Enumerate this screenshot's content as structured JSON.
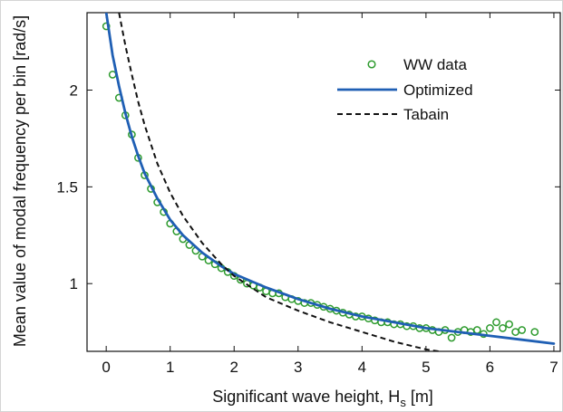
{
  "chart_data": {
    "type": "line",
    "xlabel": "Significant wave height, H",
    "xlabel_subscript": "s",
    "xlabel_unit": " [m]",
    "ylabel": "Mean value of modal frequency per bin [rad/s]",
    "xlim": [
      -0.3,
      7.1
    ],
    "ylim": [
      0.65,
      2.4
    ],
    "x_ticks": [
      0,
      1,
      2,
      3,
      4,
      5,
      6,
      7
    ],
    "y_ticks": [
      1,
      1.5,
      2
    ],
    "y_tick_labels": [
      "1",
      "1.5",
      "2"
    ],
    "grid": false,
    "legend_position": "top-right",
    "series": [
      {
        "name": "WW data",
        "kind": "scatter",
        "marker": "circle",
        "color": "#2e9b2e",
        "x": [
          0.0,
          0.1,
          0.2,
          0.3,
          0.4,
          0.5,
          0.6,
          0.7,
          0.8,
          0.9,
          1.0,
          1.1,
          1.2,
          1.3,
          1.4,
          1.5,
          1.6,
          1.7,
          1.8,
          1.9,
          2.0,
          2.1,
          2.2,
          2.3,
          2.4,
          2.5,
          2.6,
          2.7,
          2.8,
          2.9,
          3.0,
          3.1,
          3.2,
          3.3,
          3.4,
          3.5,
          3.6,
          3.7,
          3.8,
          3.9,
          4.0,
          4.1,
          4.2,
          4.3,
          4.4,
          4.5,
          4.6,
          4.7,
          4.8,
          4.9,
          5.0,
          5.1,
          5.2,
          5.3,
          5.4,
          5.5,
          5.6,
          5.7,
          5.8,
          5.9,
          6.0,
          6.1,
          6.2,
          6.3,
          6.4,
          6.5,
          6.7
        ],
        "y": [
          2.33,
          2.08,
          1.96,
          1.87,
          1.77,
          1.65,
          1.56,
          1.49,
          1.42,
          1.37,
          1.31,
          1.27,
          1.23,
          1.2,
          1.17,
          1.14,
          1.12,
          1.1,
          1.08,
          1.06,
          1.04,
          1.02,
          1.0,
          0.99,
          0.98,
          0.96,
          0.95,
          0.95,
          0.93,
          0.92,
          0.91,
          0.9,
          0.9,
          0.89,
          0.88,
          0.87,
          0.86,
          0.85,
          0.84,
          0.83,
          0.83,
          0.82,
          0.81,
          0.8,
          0.8,
          0.79,
          0.79,
          0.78,
          0.78,
          0.77,
          0.77,
          0.76,
          0.75,
          0.76,
          0.72,
          0.75,
          0.76,
          0.75,
          0.76,
          0.74,
          0.77,
          0.8,
          0.77,
          0.79,
          0.75,
          0.76,
          0.75
        ]
      },
      {
        "name": "Optimized",
        "kind": "line",
        "style": "solid",
        "color": "#1f5fb4",
        "x": [
          0.0,
          0.1,
          0.2,
          0.3,
          0.4,
          0.5,
          0.6,
          0.8,
          1.0,
          1.2,
          1.5,
          1.8,
          2.0,
          2.5,
          3.0,
          3.5,
          4.0,
          4.5,
          5.0,
          5.5,
          6.0,
          6.5,
          7.0
        ],
        "y": [
          2.4,
          2.18,
          2.02,
          1.88,
          1.76,
          1.66,
          1.57,
          1.44,
          1.33,
          1.25,
          1.16,
          1.09,
          1.05,
          0.98,
          0.92,
          0.87,
          0.83,
          0.8,
          0.77,
          0.75,
          0.73,
          0.71,
          0.69
        ]
      },
      {
        "name": "Tabain",
        "kind": "line",
        "style": "dashed",
        "color": "#111111",
        "x": [
          0.2,
          0.3,
          0.4,
          0.5,
          0.6,
          0.7,
          0.8,
          1.0,
          1.2,
          1.5,
          1.8,
          2.0,
          2.5,
          3.0,
          3.5,
          4.0,
          4.5,
          5.0,
          5.2
        ],
        "y": [
          2.4,
          2.23,
          2.08,
          1.94,
          1.82,
          1.72,
          1.62,
          1.47,
          1.35,
          1.21,
          1.1,
          1.04,
          0.93,
          0.86,
          0.8,
          0.75,
          0.7,
          0.66,
          0.65
        ]
      }
    ]
  }
}
